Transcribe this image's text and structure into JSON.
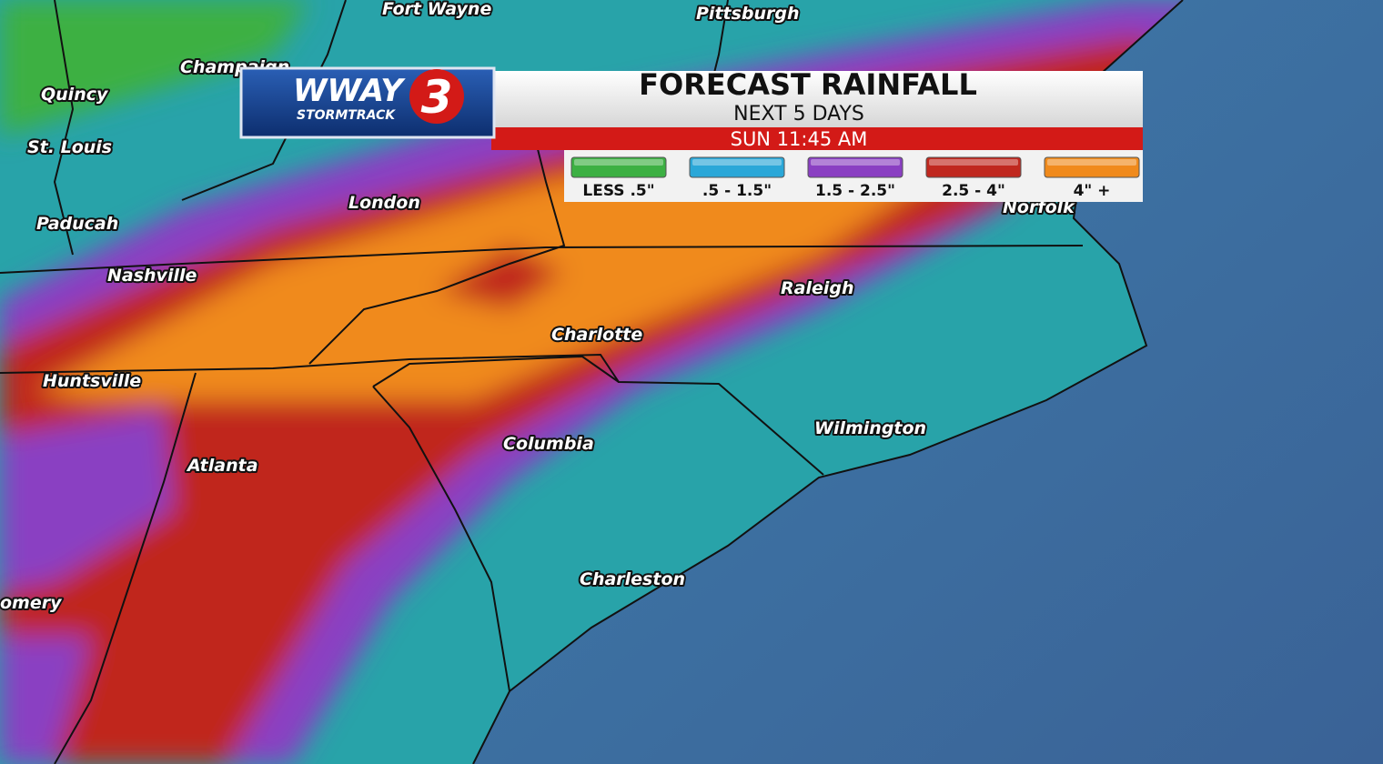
{
  "logo": {
    "name": "WWAY",
    "number": "3",
    "tagline": "STORMTRACK"
  },
  "header": {
    "title": "FORECAST RAINFALL",
    "subtitle": "NEXT 5 DAYS",
    "time": "SUN 11:45 AM"
  },
  "legend": [
    {
      "label": "LESS .5\"",
      "color": "#3cb043"
    },
    {
      "label": ".5 - 1.5\"",
      "color": "#2aa7d8"
    },
    {
      "label": "1.5 - 2.5\"",
      "color": "#8a3fc2"
    },
    {
      "label": "2.5 - 4\"",
      "color": "#c0281f"
    },
    {
      "label": "4\" +",
      "color": "#f08a1c"
    }
  ],
  "cities": [
    {
      "name": "Fort Wayne"
    },
    {
      "name": "Pittsburgh"
    },
    {
      "name": "Champaign"
    },
    {
      "name": "Quincy"
    },
    {
      "name": "St. Louis"
    },
    {
      "name": "Paducah"
    },
    {
      "name": "London"
    },
    {
      "name": "Norfolk"
    },
    {
      "name": "Nashville"
    },
    {
      "name": "Raleigh"
    },
    {
      "name": "Charlotte"
    },
    {
      "name": "Huntsville"
    },
    {
      "name": "Columbia"
    },
    {
      "name": "Atlanta"
    },
    {
      "name": "Wilmington"
    },
    {
      "name": "Charleston"
    },
    {
      "name": "omery"
    }
  ]
}
